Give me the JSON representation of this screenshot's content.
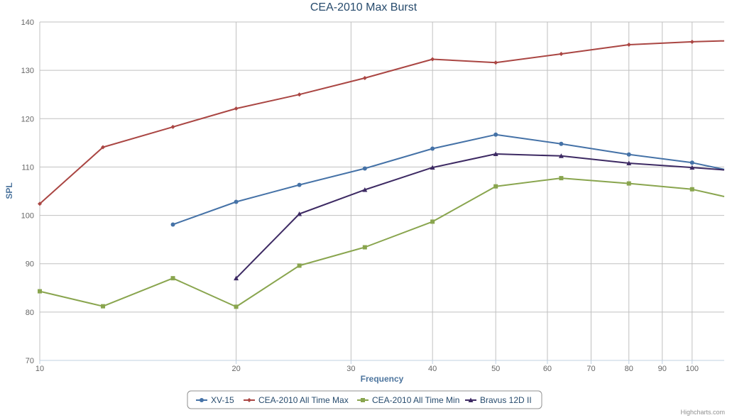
{
  "chart_data": {
    "type": "line",
    "title": "CEA-2010 Max Burst",
    "xlabel": "Frequency",
    "ylabel": "SPL",
    "x_scale": "log",
    "xlim": [
      10,
      112
    ],
    "ylim": [
      70,
      140
    ],
    "y_ticks": [
      70,
      80,
      90,
      100,
      110,
      120,
      130,
      140
    ],
    "x_ticks": [
      10,
      20,
      30,
      40,
      50,
      60,
      70,
      80,
      90,
      100
    ],
    "grid": true,
    "legend_position": "bottom-center",
    "series": [
      {
        "name": "XV-15",
        "color": "#4572a7",
        "marker": "circle",
        "points": [
          [
            16,
            98.1
          ],
          [
            20,
            102.8
          ],
          [
            25,
            106.3
          ],
          [
            31.5,
            109.7
          ],
          [
            40,
            113.8
          ],
          [
            50,
            116.7
          ],
          [
            63,
            114.8
          ],
          [
            80,
            112.6
          ],
          [
            100,
            110.9
          ],
          [
            112,
            109.5
          ]
        ]
      },
      {
        "name": "CEA-2010 All Time Max",
        "color": "#aa4643",
        "marker": "diamond",
        "points": [
          [
            10,
            102.4
          ],
          [
            12.5,
            114.1
          ],
          [
            16,
            118.3
          ],
          [
            20,
            122.1
          ],
          [
            25,
            125.0
          ],
          [
            31.5,
            128.4
          ],
          [
            40,
            132.3
          ],
          [
            50,
            131.6
          ],
          [
            63,
            133.4
          ],
          [
            80,
            135.3
          ],
          [
            100,
            135.9
          ],
          [
            112,
            136.1
          ]
        ]
      },
      {
        "name": "CEA-2010 All Time Min",
        "color": "#89a54e",
        "marker": "square",
        "points": [
          [
            10,
            84.3
          ],
          [
            12.5,
            81.2
          ],
          [
            16,
            87.0
          ],
          [
            20,
            81.1
          ],
          [
            25,
            89.6
          ],
          [
            31.5,
            93.4
          ],
          [
            40,
            98.7
          ],
          [
            50,
            106.0
          ],
          [
            63,
            107.7
          ],
          [
            80,
            106.6
          ],
          [
            100,
            105.4
          ],
          [
            112,
            103.9
          ]
        ]
      },
      {
        "name": "Bravus 12D II",
        "color": "#3d2a63",
        "marker": "triangle",
        "points": [
          [
            20,
            87.0
          ],
          [
            25,
            100.3
          ],
          [
            31.5,
            105.3
          ],
          [
            40,
            109.9
          ],
          [
            50,
            112.7
          ],
          [
            63,
            112.3
          ],
          [
            80,
            110.8
          ],
          [
            100,
            109.9
          ],
          [
            112,
            109.4
          ]
        ]
      }
    ]
  },
  "credits": "Highcharts.com"
}
